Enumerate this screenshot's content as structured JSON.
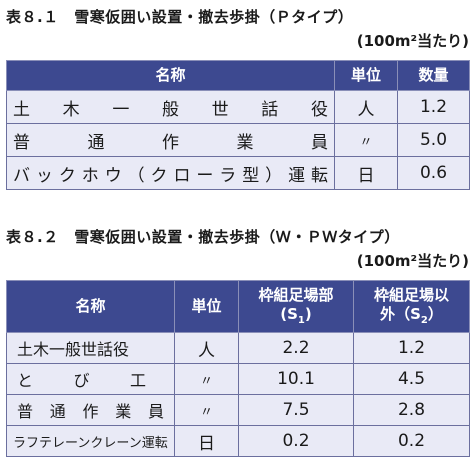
{
  "table1": {
    "caption": "表８.１　雪寒仮囲い設置・撤去歩掛（Ｐタイプ）",
    "unit_note": "(100m²当たり)",
    "headers": {
      "name": "名称",
      "unit": "単位",
      "qty": "数量"
    },
    "rows": [
      {
        "name": "土木一般世話役",
        "unit": "人",
        "qty": "1.2"
      },
      {
        "name": "普通作業員",
        "unit": "〃",
        "qty": "5.0"
      },
      {
        "name": "バックホウ（クローラ型）運転",
        "unit": "日",
        "qty": "0.6"
      }
    ]
  },
  "table2": {
    "caption": "表８.２　雪寒仮囲い設置・撤去歩掛（Ｗ・ＰＷタイプ）",
    "unit_note": "(100m²当たり)",
    "headers": {
      "name": "名称",
      "unit": "単位",
      "col1": "枠組足場部",
      "col1_sub": "(S",
      "col1_index": "1",
      "col1_close": ")",
      "col2": "枠組足場以",
      "col2_sub": "外（S",
      "col2_index": "2",
      "col2_close": "）"
    },
    "rows": [
      {
        "name": "土木一般世話役",
        "unit": "人",
        "s1": "2.2",
        "s2": "1.2"
      },
      {
        "name": "とび工",
        "unit": "〃",
        "s1": "10.1",
        "s2": "4.5"
      },
      {
        "name": "普通作業員",
        "unit": "〃",
        "s1": "7.5",
        "s2": "2.8"
      },
      {
        "name": "ラフテレーンクレーン運転",
        "unit": "日",
        "s1": "0.2",
        "s2": "0.2"
      }
    ]
  }
}
